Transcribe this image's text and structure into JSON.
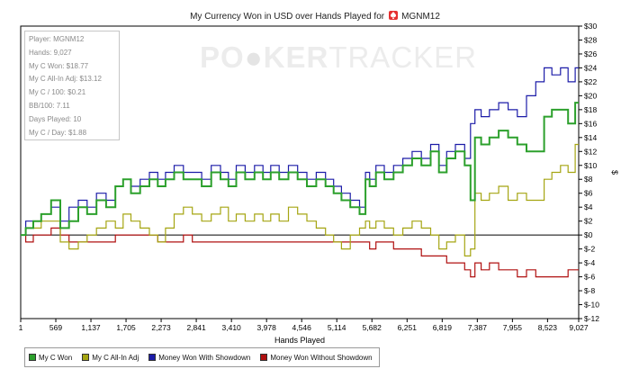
{
  "chart_data": {
    "type": "line",
    "title": "My Currency Won in USD over Hands Played for",
    "player_name": "MGNM12",
    "xlabel": "Hands Played",
    "ylabel": "$",
    "xlim": [
      1,
      9027
    ],
    "ylim": [
      -12,
      30
    ],
    "x_ticks": [
      1,
      569,
      1137,
      1705,
      2273,
      2841,
      3410,
      3978,
      4546,
      5114,
      5682,
      6251,
      6819,
      7387,
      7955,
      8523,
      9027
    ],
    "x_tick_labels": [
      "1",
      "569",
      "1,137",
      "1,705",
      "2,273",
      "2,841",
      "3,410",
      "3,978",
      "4,546",
      "5,114",
      "5,682",
      "6,251",
      "6,819",
      "7,387",
      "7,955",
      "8,523",
      "9,027"
    ],
    "y_ticks": [
      -12,
      -10,
      -8,
      -6,
      -4,
      -2,
      0,
      2,
      4,
      6,
      8,
      10,
      12,
      14,
      16,
      18,
      20,
      22,
      24,
      26,
      28,
      30
    ],
    "y_tick_labels": [
      "$-12",
      "$-10",
      "$-8",
      "$-6",
      "$-4",
      "$-2",
      "$0",
      "$2",
      "$4",
      "$6",
      "$8",
      "$10",
      "$12",
      "$14",
      "$16",
      "$18",
      "$20",
      "$22",
      "$24",
      "$26",
      "$28",
      "$30"
    ],
    "legend_position": "bottom-left",
    "grid": false,
    "watermark": "POKERTRACKER",
    "stats_box": [
      "Player: MGNM12",
      "Hands: 9,027",
      "My C Won: $18.77",
      "My C All-In Adj: $13.12",
      "My C / 100: $0.21",
      "BB/100: 7.11",
      "Days Played: 10",
      "My C / Day: $1.88"
    ],
    "series": [
      {
        "name": "My C Won",
        "color": "#2ca02c",
        "width": 2,
        "x": [
          1,
          150,
          250,
          400,
          569,
          700,
          850,
          1000,
          1137,
          1300,
          1450,
          1600,
          1705,
          1850,
          2000,
          2150,
          2273,
          2400,
          2550,
          2700,
          2841,
          3000,
          3150,
          3300,
          3410,
          3550,
          3700,
          3850,
          3978,
          4100,
          4250,
          4400,
          4546,
          4700,
          4850,
          5000,
          5114,
          5250,
          5400,
          5550,
          5600,
          5682,
          5800,
          5950,
          6100,
          6251,
          6400,
          6550,
          6700,
          6819,
          6950,
          7100,
          7250,
          7300,
          7387,
          7500,
          7650,
          7800,
          7955,
          8100,
          8250,
          8400,
          8523,
          8650,
          8800,
          8900,
          9027
        ],
        "y": [
          0,
          1,
          2,
          3,
          5,
          1,
          2,
          4,
          3,
          5,
          4,
          7,
          8,
          6,
          7,
          8,
          7,
          8,
          9,
          8,
          8,
          7,
          9,
          8,
          7,
          9,
          8,
          9,
          8,
          9,
          8,
          9,
          8,
          7,
          8,
          7,
          6,
          5,
          4,
          3,
          8,
          7,
          9,
          8,
          9,
          10,
          11,
          10,
          12,
          9,
          11,
          12,
          10,
          5,
          14,
          13,
          14,
          15,
          14,
          13,
          12,
          12,
          17,
          18,
          18,
          16,
          19
        ]
      },
      {
        "name": "My C All-In Adj",
        "color": "#a5a512",
        "width": 1.2,
        "x": [
          1,
          150,
          250,
          400,
          569,
          700,
          850,
          1000,
          1137,
          1300,
          1450,
          1600,
          1705,
          1850,
          2000,
          2150,
          2273,
          2400,
          2550,
          2700,
          2841,
          3000,
          3150,
          3300,
          3410,
          3550,
          3700,
          3850,
          3978,
          4100,
          4250,
          4400,
          4546,
          4700,
          4850,
          5000,
          5114,
          5250,
          5400,
          5550,
          5600,
          5682,
          5800,
          5950,
          6100,
          6251,
          6400,
          6550,
          6700,
          6819,
          6950,
          7100,
          7250,
          7300,
          7387,
          7500,
          7650,
          7800,
          7955,
          8100,
          8250,
          8400,
          8523,
          8650,
          8800,
          8900,
          9027
        ],
        "y": [
          0,
          1,
          1,
          2,
          2,
          -1,
          -2,
          -1,
          0,
          1,
          2,
          1,
          3,
          2,
          1,
          0,
          -1,
          1,
          3,
          4,
          3,
          2,
          3,
          4,
          2,
          3,
          2,
          3,
          2,
          3,
          2,
          4,
          3,
          2,
          1,
          0,
          -1,
          -2,
          0,
          1,
          2,
          1,
          2,
          1,
          0,
          1,
          2,
          1,
          0,
          -2,
          -1,
          0,
          -3,
          -2,
          6,
          5,
          6,
          7,
          5,
          6,
          5,
          5,
          8,
          9,
          10,
          9,
          13
        ]
      },
      {
        "name": "Money Won With Showdown",
        "color": "#1c1ca8",
        "width": 1.2,
        "x": [
          1,
          150,
          250,
          400,
          569,
          700,
          850,
          1000,
          1137,
          1300,
          1450,
          1600,
          1705,
          1850,
          2000,
          2150,
          2273,
          2400,
          2550,
          2700,
          2841,
          3000,
          3150,
          3300,
          3410,
          3550,
          3700,
          3850,
          3978,
          4100,
          4250,
          4400,
          4546,
          4700,
          4850,
          5000,
          5114,
          5250,
          5400,
          5550,
          5600,
          5682,
          5800,
          5950,
          6100,
          6251,
          6400,
          6550,
          6700,
          6819,
          6950,
          7100,
          7250,
          7300,
          7387,
          7500,
          7650,
          7800,
          7955,
          8100,
          8250,
          8400,
          8523,
          8650,
          8800,
          8900,
          9027
        ],
        "y": [
          0,
          2,
          2,
          3,
          4,
          2,
          4,
          5,
          4,
          6,
          5,
          7,
          8,
          7,
          8,
          9,
          8,
          9,
          10,
          9,
          9,
          8,
          10,
          9,
          8,
          10,
          9,
          10,
          9,
          10,
          9,
          10,
          9,
          8,
          9,
          8,
          7,
          6,
          5,
          4,
          9,
          8,
          10,
          9,
          10,
          11,
          12,
          11,
          13,
          10,
          12,
          13,
          11,
          16,
          18,
          17,
          18,
          19,
          18,
          17,
          20,
          22,
          24,
          23,
          24,
          22,
          24
        ]
      },
      {
        "name": "Money Won Without Showdown",
        "color": "#b01010",
        "width": 1.2,
        "x": [
          1,
          150,
          250,
          400,
          569,
          700,
          850,
          1000,
          1137,
          1300,
          1450,
          1600,
          1705,
          1850,
          2000,
          2150,
          2273,
          2400,
          2550,
          2700,
          2841,
          3000,
          3150,
          3300,
          3410,
          3550,
          3700,
          3850,
          3978,
          4100,
          4250,
          4400,
          4546,
          4700,
          4850,
          5000,
          5114,
          5250,
          5400,
          5550,
          5600,
          5682,
          5800,
          5950,
          6100,
          6251,
          6400,
          6550,
          6700,
          6819,
          6950,
          7100,
          7250,
          7300,
          7387,
          7500,
          7650,
          7800,
          7955,
          8100,
          8250,
          8400,
          8523,
          8650,
          8800,
          8900,
          9027
        ],
        "y": [
          0,
          -1,
          0,
          0,
          1,
          0,
          -1,
          -1,
          -1,
          -1,
          -1,
          0,
          0,
          0,
          0,
          0,
          -1,
          -1,
          -1,
          0,
          -1,
          -1,
          -1,
          -1,
          -1,
          -1,
          -1,
          -1,
          -1,
          -1,
          -1,
          -1,
          -1,
          -1,
          -1,
          -1,
          -1,
          -1,
          -1,
          -1,
          -1,
          -2,
          -1,
          -1,
          -2,
          -2,
          -2,
          -3,
          -3,
          -3,
          -4,
          -4,
          -5,
          -6,
          -4,
          -5,
          -4,
          -5,
          -5,
          -6,
          -5,
          -6,
          -6,
          -6,
          -6,
          -5,
          -5
        ]
      }
    ]
  },
  "legend": {
    "items": [
      {
        "label": "My C Won",
        "color": "#2ca02c"
      },
      {
        "label": "My C All-In Adj",
        "color": "#a5a512"
      },
      {
        "label": "Money Won With Showdown",
        "color": "#1c1ca8"
      },
      {
        "label": "Money Won Without Showdown",
        "color": "#b01010"
      }
    ]
  },
  "watermark_text": {
    "a": "PO",
    "b": "KER",
    "c": "TRACKER"
  }
}
